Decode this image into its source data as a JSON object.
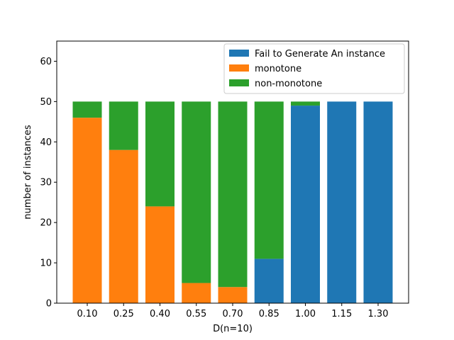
{
  "chart_data": {
    "type": "bar",
    "stacked": true,
    "categories": [
      "0.10",
      "0.25",
      "0.40",
      "0.55",
      "0.70",
      "0.85",
      "1.00",
      "1.15",
      "1.30"
    ],
    "series": [
      {
        "name": "Fail to Generate An instance",
        "color": "#1f77b4",
        "values": [
          0,
          0,
          0,
          0,
          0,
          11,
          49,
          50,
          50
        ]
      },
      {
        "name": "monotone",
        "color": "#ff7f0e",
        "values": [
          46,
          38,
          24,
          5,
          4,
          0,
          0,
          0,
          0
        ]
      },
      {
        "name": "non-monotone",
        "color": "#2ca02c",
        "values": [
          4,
          12,
          26,
          45,
          46,
          39,
          1,
          0,
          0
        ]
      }
    ],
    "xlabel": "D(n=10)",
    "ylabel": "number of instances",
    "ylim": [
      0,
      65
    ],
    "yticks": [
      "0",
      "10",
      "20",
      "30",
      "40",
      "50",
      "60"
    ],
    "legend_position": "top-right",
    "grid": false
  }
}
